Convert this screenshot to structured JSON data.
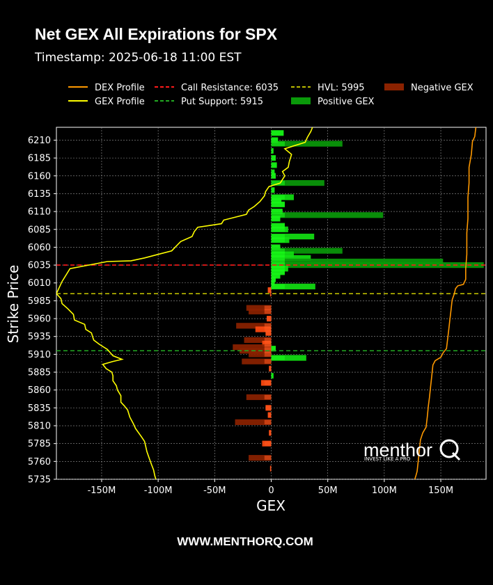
{
  "chart_data": {
    "type": "bar",
    "orientation": "horizontal",
    "title": "Net GEX All Expirations for SPX",
    "subtitle": "Timestamp: 2025-06-18 11:00 EST",
    "xlabel": "GEX",
    "ylabel": "Strike Price",
    "xlim": [
      -190,
      190
    ],
    "ylim": [
      5735,
      6228
    ],
    "x_ticks": [
      -150,
      -100,
      -50,
      0,
      50,
      100,
      150
    ],
    "x_tick_labels": [
      "-150M",
      "-100M",
      "-50M",
      "0",
      "50M",
      "100M",
      "150M"
    ],
    "y_ticks": [
      5735,
      5760,
      5785,
      5810,
      5835,
      5860,
      5885,
      5910,
      5935,
      5960,
      5985,
      6010,
      6035,
      6060,
      6085,
      6110,
      6135,
      6160,
      6185,
      6210
    ],
    "grid": true,
    "legend_position": "top",
    "legend": [
      {
        "label": "DEX Profile",
        "kind": "line",
        "color": "#ff9900",
        "dash": false
      },
      {
        "label": "GEX Profile",
        "kind": "line",
        "color": "#ffff00",
        "dash": false
      },
      {
        "label": "Call Resistance: 6035",
        "kind": "line",
        "color": "#ff1a1a",
        "dash": true
      },
      {
        "label": "Put Support: 5915",
        "kind": "line",
        "color": "#22aa22",
        "dash": true
      },
      {
        "label": "HVL: 5995",
        "kind": "line",
        "color": "#bbbb00",
        "dash": true
      },
      {
        "label": "Positive GEX",
        "kind": "patch",
        "color": "#0a9a0a"
      },
      {
        "label": "Negative GEX",
        "kind": "patch",
        "color": "#8b2200"
      }
    ],
    "levels": [
      {
        "name": "Call Resistance",
        "value": 6035,
        "color": "#ff1a1a"
      },
      {
        "name": "Put Support",
        "value": 5915,
        "color": "#22aa22"
      },
      {
        "name": "HVL",
        "value": 5995,
        "color": "#bbbb00"
      }
    ],
    "bars": [
      {
        "strike": 6220,
        "value": 11,
        "group": "all"
      },
      {
        "strike": 6210,
        "value": 6,
        "group": "all"
      },
      {
        "strike": 6205,
        "value": 63,
        "group": "all"
      },
      {
        "strike": 6195,
        "value": 2,
        "group": "all"
      },
      {
        "strike": 6185,
        "value": 4,
        "group": "all"
      },
      {
        "strike": 6175,
        "value": 5,
        "group": "all"
      },
      {
        "strike": 6165,
        "value": 3,
        "group": "all"
      },
      {
        "strike": 6160,
        "value": 4,
        "group": "all"
      },
      {
        "strike": 6150,
        "value": 47,
        "group": "all"
      },
      {
        "strike": 6140,
        "value": 3,
        "group": "all"
      },
      {
        "strike": 6130,
        "value": 20,
        "group": "all"
      },
      {
        "strike": 6125,
        "value": 9,
        "group": "all"
      },
      {
        "strike": 6120,
        "value": 12,
        "group": "all"
      },
      {
        "strike": 6110,
        "value": 10,
        "group": "all"
      },
      {
        "strike": 6105,
        "value": 99,
        "group": "all"
      },
      {
        "strike": 6100,
        "value": 8,
        "group": "all"
      },
      {
        "strike": 6090,
        "value": 12,
        "group": "all"
      },
      {
        "strike": 6085,
        "value": 15,
        "group": "all"
      },
      {
        "strike": 6075,
        "value": 38,
        "group": "all"
      },
      {
        "strike": 6070,
        "value": 16,
        "group": "all"
      },
      {
        "strike": 6060,
        "value": 8,
        "group": "all"
      },
      {
        "strike": 6055,
        "value": 63,
        "group": "all"
      },
      {
        "strike": 6050,
        "value": 20,
        "group": "all"
      },
      {
        "strike": 6045,
        "value": 35,
        "group": "all"
      },
      {
        "strike": 6040,
        "value": 152,
        "group": "all"
      },
      {
        "strike": 6035,
        "value": 188,
        "group": "all"
      },
      {
        "strike": 6030,
        "value": 15,
        "group": "all"
      },
      {
        "strike": 6025,
        "value": 12,
        "group": "all"
      },
      {
        "strike": 6020,
        "value": 8,
        "group": "all"
      },
      {
        "strike": 6015,
        "value": 4,
        "group": "all"
      },
      {
        "strike": 6010,
        "value": 3,
        "group": "all"
      },
      {
        "strike": 6005,
        "value": 39,
        "group": "all"
      },
      {
        "strike": 6000,
        "value": -3,
        "group": "all"
      },
      {
        "strike": 5995,
        "value": -1,
        "group": "all"
      },
      {
        "strike": 5975,
        "value": -22,
        "group": "all"
      },
      {
        "strike": 5970,
        "value": -20,
        "group": "all"
      },
      {
        "strike": 5960,
        "value": -4,
        "group": "all"
      },
      {
        "strike": 5950,
        "value": -31,
        "group": "all"
      },
      {
        "strike": 5945,
        "value": -14,
        "group": "all"
      },
      {
        "strike": 5940,
        "value": -5,
        "group": "all"
      },
      {
        "strike": 5930,
        "value": -24,
        "group": "all"
      },
      {
        "strike": 5925,
        "value": -8,
        "group": "all"
      },
      {
        "strike": 5920,
        "value": -34,
        "group": "all"
      },
      {
        "strike": 5918,
        "value": 4,
        "group": "all"
      },
      {
        "strike": 5915,
        "value": -28,
        "group": "all"
      },
      {
        "strike": 5910,
        "value": -20,
        "group": "all"
      },
      {
        "strike": 5905,
        "value": 31,
        "group": "all"
      },
      {
        "strike": 5900,
        "value": -26,
        "group": "all"
      },
      {
        "strike": 5890,
        "value": -2,
        "group": "all"
      },
      {
        "strike": 5880,
        "value": 2,
        "group": "all"
      },
      {
        "strike": 5870,
        "value": -9,
        "group": "all"
      },
      {
        "strike": 5850,
        "value": -22,
        "group": "all"
      },
      {
        "strike": 5835,
        "value": -5,
        "group": "all"
      },
      {
        "strike": 5825,
        "value": -3,
        "group": "all"
      },
      {
        "strike": 5815,
        "value": -32,
        "group": "all"
      },
      {
        "strike": 5800,
        "value": -2,
        "group": "all"
      },
      {
        "strike": 5785,
        "value": -8,
        "group": "all"
      },
      {
        "strike": 5765,
        "value": -20,
        "group": "all"
      },
      {
        "strike": 5750,
        "value": -1,
        "group": "all"
      }
    ],
    "gex_profile": [
      [
        37,
        6230
      ],
      [
        35,
        6222
      ],
      [
        32,
        6214
      ],
      [
        30,
        6207
      ],
      [
        20,
        6202
      ],
      [
        12,
        6198
      ],
      [
        18,
        6190
      ],
      [
        16,
        6180
      ],
      [
        15,
        6172
      ],
      [
        10,
        6166
      ],
      [
        12,
        6160
      ],
      [
        8,
        6150
      ],
      [
        -2,
        6145
      ],
      [
        -5,
        6138
      ],
      [
        -6,
        6132
      ],
      [
        -10,
        6124
      ],
      [
        -15,
        6117
      ],
      [
        -20,
        6112
      ],
      [
        -22,
        6106
      ],
      [
        -42,
        6098
      ],
      [
        -44,
        6093
      ],
      [
        -65,
        6088
      ],
      [
        -68,
        6082
      ],
      [
        -70,
        6075
      ],
      [
        -80,
        6068
      ],
      [
        -85,
        6060
      ],
      [
        -88,
        6055
      ],
      [
        -100,
        6050
      ],
      [
        -112,
        6045
      ],
      [
        -124,
        6041
      ],
      [
        -145,
        6040
      ],
      [
        -178,
        6030
      ],
      [
        -185,
        6012
      ],
      [
        -190,
        5995
      ],
      [
        -186,
        5988
      ],
      [
        -185,
        5981
      ],
      [
        -180,
        5974
      ],
      [
        -175,
        5966
      ],
      [
        -174,
        5958
      ],
      [
        -165,
        5952
      ],
      [
        -164,
        5945
      ],
      [
        -159,
        5940
      ],
      [
        -157,
        5930
      ],
      [
        -152,
        5924
      ],
      [
        -145,
        5917
      ],
      [
        -140,
        5908
      ],
      [
        -132,
        5903
      ],
      [
        -140,
        5900
      ],
      [
        -149,
        5896
      ],
      [
        -146,
        5890
      ],
      [
        -141,
        5885
      ],
      [
        -140,
        5880
      ],
      [
        -140,
        5873
      ],
      [
        -137,
        5866
      ],
      [
        -136,
        5860
      ],
      [
        -133,
        5852
      ],
      [
        -133,
        5843
      ],
      [
        -130,
        5838
      ],
      [
        -127,
        5832
      ],
      [
        -125,
        5822
      ],
      [
        -122,
        5813
      ],
      [
        -120,
        5806
      ],
      [
        -115,
        5795
      ],
      [
        -112,
        5788
      ],
      [
        -111,
        5781
      ],
      [
        -110,
        5774
      ],
      [
        -108,
        5765
      ],
      [
        -106,
        5756
      ],
      [
        -104,
        5748
      ],
      [
        -103,
        5740
      ],
      [
        -102,
        5735
      ]
    ],
    "dex_profile": [
      [
        181,
        6228
      ],
      [
        180,
        6215
      ],
      [
        178,
        6208
      ],
      [
        177,
        6190
      ],
      [
        175,
        6172
      ],
      [
        175,
        6150
      ],
      [
        174,
        6130
      ],
      [
        174,
        6100
      ],
      [
        173,
        6080
      ],
      [
        173,
        6050
      ],
      [
        172,
        6030
      ],
      [
        172,
        6015
      ],
      [
        170,
        6008
      ],
      [
        165,
        6006
      ],
      [
        163,
        6002
      ],
      [
        162,
        5995
      ],
      [
        160,
        5986
      ],
      [
        159,
        5972
      ],
      [
        158,
        5958
      ],
      [
        157,
        5944
      ],
      [
        156,
        5931
      ],
      [
        155,
        5918
      ],
      [
        152,
        5912
      ],
      [
        150,
        5906
      ],
      [
        145,
        5901
      ],
      [
        143,
        5895
      ],
      [
        142,
        5880
      ],
      [
        141,
        5865
      ],
      [
        140,
        5850
      ],
      [
        139,
        5838
      ],
      [
        138,
        5822
      ],
      [
        137,
        5808
      ],
      [
        134,
        5800
      ],
      [
        132,
        5790
      ],
      [
        131,
        5775
      ],
      [
        130,
        5760
      ],
      [
        129,
        5746
      ],
      [
        128,
        5740
      ],
      [
        127,
        5735
      ]
    ]
  },
  "footer": {
    "website": "WWW.MENTHORQ.COM"
  },
  "branding": {
    "logo_text": "menthor",
    "logo_letter": "Q",
    "tagline": "INVEST LIKE A PRO"
  }
}
